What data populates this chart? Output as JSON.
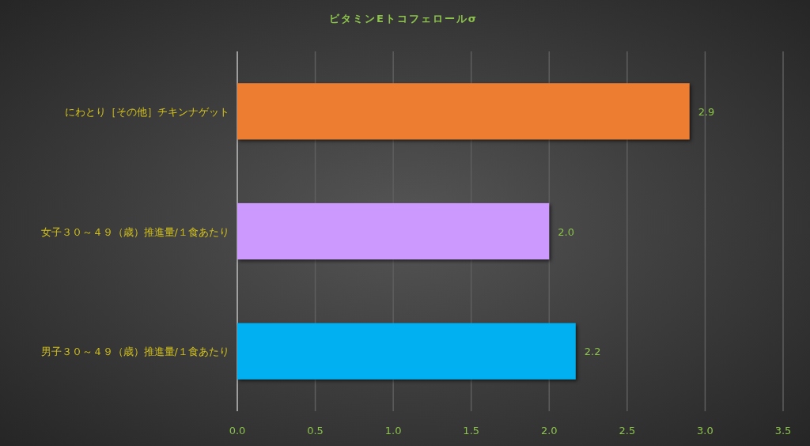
{
  "chart_data": {
    "type": "bar",
    "orientation": "horizontal",
    "title": "ビタミンEトコフェロールσ",
    "categories": [
      "にわとり［その他］チキンナゲット",
      "女子３０～４９（歳）推進量/１食あたり",
      "男子３０～４９（歳）推進量/１食あたり"
    ],
    "values": [
      2.9,
      2.0,
      2.17
    ],
    "colors": [
      "#ed7d31",
      "#cc99ff",
      "#00b0f0"
    ],
    "value_labels": [
      "2.9",
      "2.0",
      "2.2"
    ],
    "xlim": [
      0,
      3.5
    ],
    "xticks": [
      "0.0",
      "0.5",
      "1.0",
      "1.5",
      "2.0",
      "2.5",
      "3.0",
      "3.5"
    ],
    "grid": "x"
  }
}
